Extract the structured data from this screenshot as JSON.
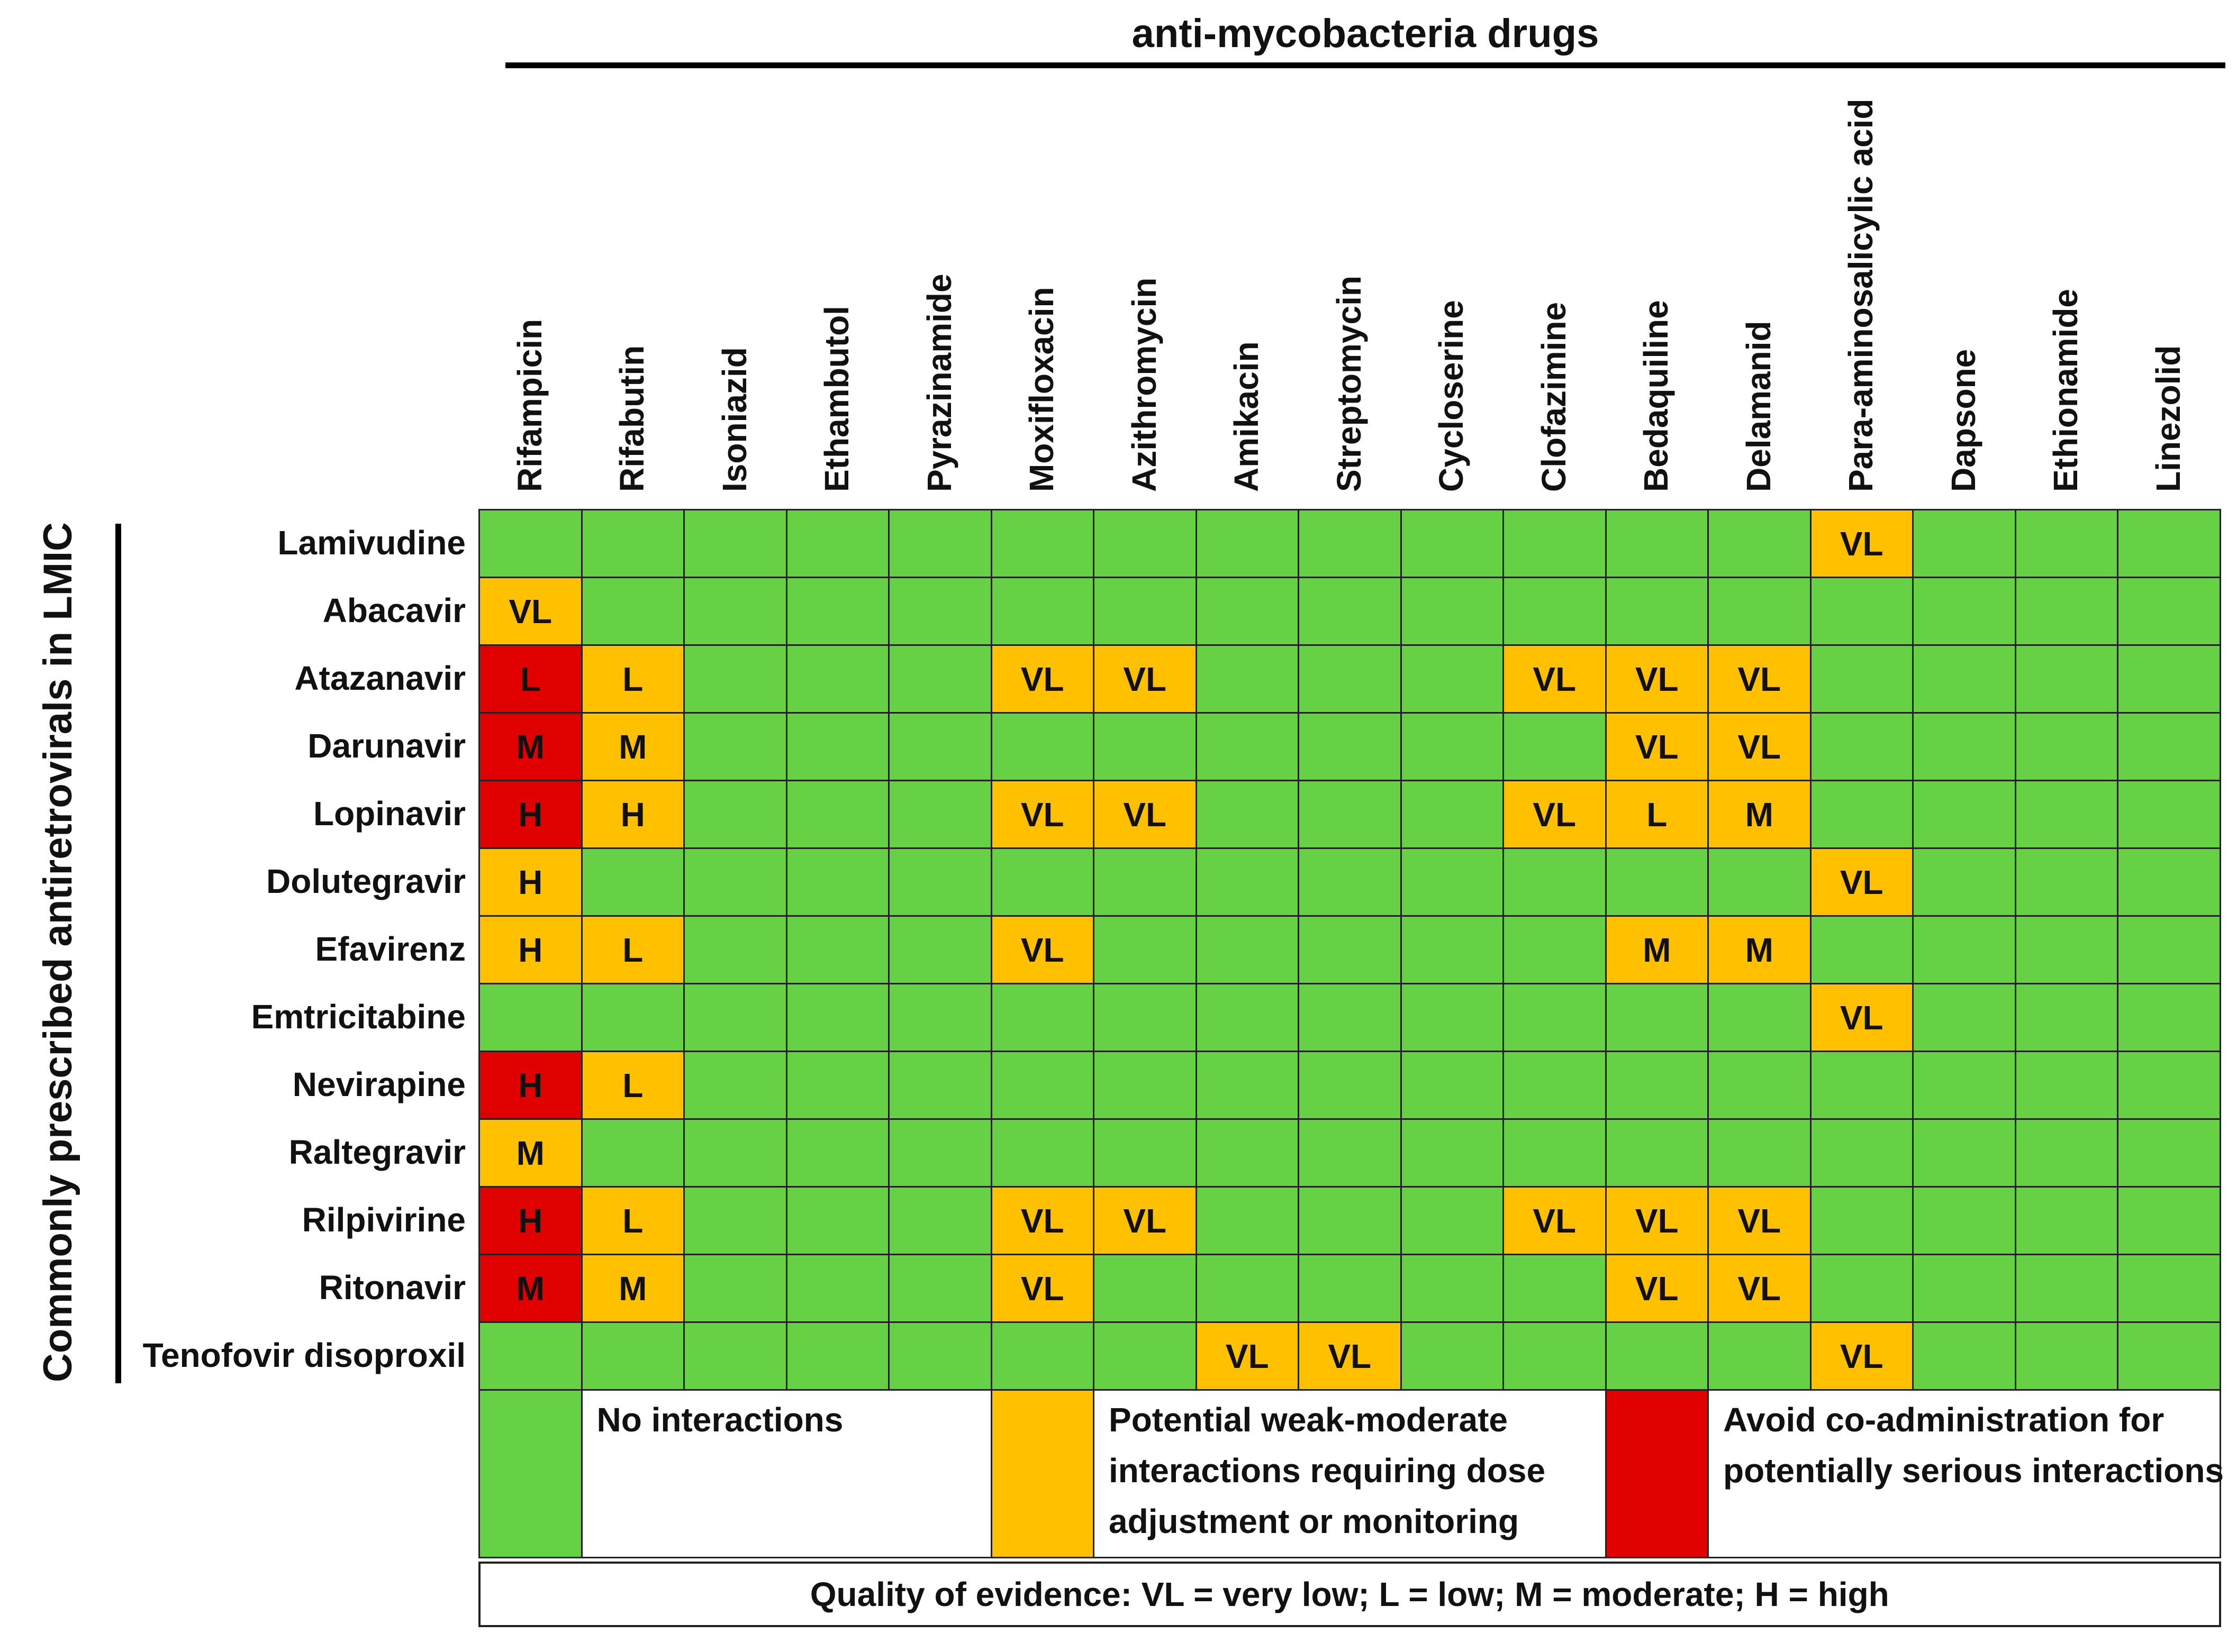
{
  "colors": {
    "none": "#66d144",
    "weak_moderate": "#ffc000",
    "avoid": "#e00000"
  },
  "chart_data": {
    "type": "heatmap",
    "title": "anti-mycobacteria drugs",
    "ylabel": "Commonly prescribed antiretrovirals in LMIC",
    "columns": [
      "Rifampicin",
      "Rifabutin",
      "Isoniazid",
      "Ethambutol",
      "Pyrazinamide",
      "Moxifloxacin",
      "Azithromycin",
      "Amikacin",
      "Streptomycin",
      "Cycloserine",
      "Clofazimine",
      "Bedaquiline",
      "Delamanid",
      "Para-aminosalicylic acid",
      "Dapsone",
      "Ethionamide",
      "Linezolid"
    ],
    "rows": [
      {
        "name": "Lamivudine",
        "cells": [
          {
            "c": "none",
            "t": ""
          },
          {
            "c": "none",
            "t": ""
          },
          {
            "c": "none",
            "t": ""
          },
          {
            "c": "none",
            "t": ""
          },
          {
            "c": "none",
            "t": ""
          },
          {
            "c": "none",
            "t": ""
          },
          {
            "c": "none",
            "t": ""
          },
          {
            "c": "none",
            "t": ""
          },
          {
            "c": "none",
            "t": ""
          },
          {
            "c": "none",
            "t": ""
          },
          {
            "c": "none",
            "t": ""
          },
          {
            "c": "none",
            "t": ""
          },
          {
            "c": "none",
            "t": ""
          },
          {
            "c": "weak_moderate",
            "t": "VL"
          },
          {
            "c": "none",
            "t": ""
          },
          {
            "c": "none",
            "t": ""
          },
          {
            "c": "none",
            "t": ""
          }
        ]
      },
      {
        "name": "Abacavir",
        "cells": [
          {
            "c": "weak_moderate",
            "t": "VL"
          },
          {
            "c": "none",
            "t": ""
          },
          {
            "c": "none",
            "t": ""
          },
          {
            "c": "none",
            "t": ""
          },
          {
            "c": "none",
            "t": ""
          },
          {
            "c": "none",
            "t": ""
          },
          {
            "c": "none",
            "t": ""
          },
          {
            "c": "none",
            "t": ""
          },
          {
            "c": "none",
            "t": ""
          },
          {
            "c": "none",
            "t": ""
          },
          {
            "c": "none",
            "t": ""
          },
          {
            "c": "none",
            "t": ""
          },
          {
            "c": "none",
            "t": ""
          },
          {
            "c": "none",
            "t": ""
          },
          {
            "c": "none",
            "t": ""
          },
          {
            "c": "none",
            "t": ""
          },
          {
            "c": "none",
            "t": ""
          }
        ]
      },
      {
        "name": "Atazanavir",
        "cells": [
          {
            "c": "avoid",
            "t": "L"
          },
          {
            "c": "weak_moderate",
            "t": "L"
          },
          {
            "c": "none",
            "t": ""
          },
          {
            "c": "none",
            "t": ""
          },
          {
            "c": "none",
            "t": ""
          },
          {
            "c": "weak_moderate",
            "t": "VL"
          },
          {
            "c": "weak_moderate",
            "t": "VL"
          },
          {
            "c": "none",
            "t": ""
          },
          {
            "c": "none",
            "t": ""
          },
          {
            "c": "none",
            "t": ""
          },
          {
            "c": "weak_moderate",
            "t": "VL"
          },
          {
            "c": "weak_moderate",
            "t": "VL"
          },
          {
            "c": "weak_moderate",
            "t": "VL"
          },
          {
            "c": "none",
            "t": ""
          },
          {
            "c": "none",
            "t": ""
          },
          {
            "c": "none",
            "t": ""
          },
          {
            "c": "none",
            "t": ""
          }
        ]
      },
      {
        "name": "Darunavir",
        "cells": [
          {
            "c": "avoid",
            "t": "M"
          },
          {
            "c": "weak_moderate",
            "t": "M"
          },
          {
            "c": "none",
            "t": ""
          },
          {
            "c": "none",
            "t": ""
          },
          {
            "c": "none",
            "t": ""
          },
          {
            "c": "none",
            "t": ""
          },
          {
            "c": "none",
            "t": ""
          },
          {
            "c": "none",
            "t": ""
          },
          {
            "c": "none",
            "t": ""
          },
          {
            "c": "none",
            "t": ""
          },
          {
            "c": "none",
            "t": ""
          },
          {
            "c": "weak_moderate",
            "t": "VL"
          },
          {
            "c": "weak_moderate",
            "t": "VL"
          },
          {
            "c": "none",
            "t": ""
          },
          {
            "c": "none",
            "t": ""
          },
          {
            "c": "none",
            "t": ""
          },
          {
            "c": "none",
            "t": ""
          }
        ]
      },
      {
        "name": "Lopinavir",
        "cells": [
          {
            "c": "avoid",
            "t": "H"
          },
          {
            "c": "weak_moderate",
            "t": "H"
          },
          {
            "c": "none",
            "t": ""
          },
          {
            "c": "none",
            "t": ""
          },
          {
            "c": "none",
            "t": ""
          },
          {
            "c": "weak_moderate",
            "t": "VL"
          },
          {
            "c": "weak_moderate",
            "t": "VL"
          },
          {
            "c": "none",
            "t": ""
          },
          {
            "c": "none",
            "t": ""
          },
          {
            "c": "none",
            "t": ""
          },
          {
            "c": "weak_moderate",
            "t": "VL"
          },
          {
            "c": "weak_moderate",
            "t": "L"
          },
          {
            "c": "weak_moderate",
            "t": "M"
          },
          {
            "c": "none",
            "t": ""
          },
          {
            "c": "none",
            "t": ""
          },
          {
            "c": "none",
            "t": ""
          },
          {
            "c": "none",
            "t": ""
          }
        ]
      },
      {
        "name": "Dolutegravir",
        "cells": [
          {
            "c": "weak_moderate",
            "t": "H"
          },
          {
            "c": "none",
            "t": ""
          },
          {
            "c": "none",
            "t": ""
          },
          {
            "c": "none",
            "t": ""
          },
          {
            "c": "none",
            "t": ""
          },
          {
            "c": "none",
            "t": ""
          },
          {
            "c": "none",
            "t": ""
          },
          {
            "c": "none",
            "t": ""
          },
          {
            "c": "none",
            "t": ""
          },
          {
            "c": "none",
            "t": ""
          },
          {
            "c": "none",
            "t": ""
          },
          {
            "c": "none",
            "t": ""
          },
          {
            "c": "none",
            "t": ""
          },
          {
            "c": "weak_moderate",
            "t": "VL"
          },
          {
            "c": "none",
            "t": ""
          },
          {
            "c": "none",
            "t": ""
          },
          {
            "c": "none",
            "t": ""
          }
        ]
      },
      {
        "name": "Efavirenz",
        "cells": [
          {
            "c": "weak_moderate",
            "t": "H"
          },
          {
            "c": "weak_moderate",
            "t": "L"
          },
          {
            "c": "none",
            "t": ""
          },
          {
            "c": "none",
            "t": ""
          },
          {
            "c": "none",
            "t": ""
          },
          {
            "c": "weak_moderate",
            "t": "VL"
          },
          {
            "c": "none",
            "t": ""
          },
          {
            "c": "none",
            "t": ""
          },
          {
            "c": "none",
            "t": ""
          },
          {
            "c": "none",
            "t": ""
          },
          {
            "c": "none",
            "t": ""
          },
          {
            "c": "weak_moderate",
            "t": "M"
          },
          {
            "c": "weak_moderate",
            "t": "M"
          },
          {
            "c": "none",
            "t": ""
          },
          {
            "c": "none",
            "t": ""
          },
          {
            "c": "none",
            "t": ""
          },
          {
            "c": "none",
            "t": ""
          }
        ]
      },
      {
        "name": "Emtricitabine",
        "cells": [
          {
            "c": "none",
            "t": ""
          },
          {
            "c": "none",
            "t": ""
          },
          {
            "c": "none",
            "t": ""
          },
          {
            "c": "none",
            "t": ""
          },
          {
            "c": "none",
            "t": ""
          },
          {
            "c": "none",
            "t": ""
          },
          {
            "c": "none",
            "t": ""
          },
          {
            "c": "none",
            "t": ""
          },
          {
            "c": "none",
            "t": ""
          },
          {
            "c": "none",
            "t": ""
          },
          {
            "c": "none",
            "t": ""
          },
          {
            "c": "none",
            "t": ""
          },
          {
            "c": "none",
            "t": ""
          },
          {
            "c": "weak_moderate",
            "t": "VL"
          },
          {
            "c": "none",
            "t": ""
          },
          {
            "c": "none",
            "t": ""
          },
          {
            "c": "none",
            "t": ""
          }
        ]
      },
      {
        "name": "Nevirapine",
        "cells": [
          {
            "c": "avoid",
            "t": "H"
          },
          {
            "c": "weak_moderate",
            "t": "L"
          },
          {
            "c": "none",
            "t": ""
          },
          {
            "c": "none",
            "t": ""
          },
          {
            "c": "none",
            "t": ""
          },
          {
            "c": "none",
            "t": ""
          },
          {
            "c": "none",
            "t": ""
          },
          {
            "c": "none",
            "t": ""
          },
          {
            "c": "none",
            "t": ""
          },
          {
            "c": "none",
            "t": ""
          },
          {
            "c": "none",
            "t": ""
          },
          {
            "c": "none",
            "t": ""
          },
          {
            "c": "none",
            "t": ""
          },
          {
            "c": "none",
            "t": ""
          },
          {
            "c": "none",
            "t": ""
          },
          {
            "c": "none",
            "t": ""
          },
          {
            "c": "none",
            "t": ""
          }
        ]
      },
      {
        "name": "Raltegravir",
        "cells": [
          {
            "c": "weak_moderate",
            "t": "M"
          },
          {
            "c": "none",
            "t": ""
          },
          {
            "c": "none",
            "t": ""
          },
          {
            "c": "none",
            "t": ""
          },
          {
            "c": "none",
            "t": ""
          },
          {
            "c": "none",
            "t": ""
          },
          {
            "c": "none",
            "t": ""
          },
          {
            "c": "none",
            "t": ""
          },
          {
            "c": "none",
            "t": ""
          },
          {
            "c": "none",
            "t": ""
          },
          {
            "c": "none",
            "t": ""
          },
          {
            "c": "none",
            "t": ""
          },
          {
            "c": "none",
            "t": ""
          },
          {
            "c": "none",
            "t": ""
          },
          {
            "c": "none",
            "t": ""
          },
          {
            "c": "none",
            "t": ""
          },
          {
            "c": "none",
            "t": ""
          }
        ]
      },
      {
        "name": "Rilpivirine",
        "cells": [
          {
            "c": "avoid",
            "t": "H"
          },
          {
            "c": "weak_moderate",
            "t": "L"
          },
          {
            "c": "none",
            "t": ""
          },
          {
            "c": "none",
            "t": ""
          },
          {
            "c": "none",
            "t": ""
          },
          {
            "c": "weak_moderate",
            "t": "VL"
          },
          {
            "c": "weak_moderate",
            "t": "VL"
          },
          {
            "c": "none",
            "t": ""
          },
          {
            "c": "none",
            "t": ""
          },
          {
            "c": "none",
            "t": ""
          },
          {
            "c": "weak_moderate",
            "t": "VL"
          },
          {
            "c": "weak_moderate",
            "t": "VL"
          },
          {
            "c": "weak_moderate",
            "t": "VL"
          },
          {
            "c": "none",
            "t": ""
          },
          {
            "c": "none",
            "t": ""
          },
          {
            "c": "none",
            "t": ""
          },
          {
            "c": "none",
            "t": ""
          }
        ]
      },
      {
        "name": "Ritonavir",
        "cells": [
          {
            "c": "avoid",
            "t": "M"
          },
          {
            "c": "weak_moderate",
            "t": "M"
          },
          {
            "c": "none",
            "t": ""
          },
          {
            "c": "none",
            "t": ""
          },
          {
            "c": "none",
            "t": ""
          },
          {
            "c": "weak_moderate",
            "t": "VL"
          },
          {
            "c": "none",
            "t": ""
          },
          {
            "c": "none",
            "t": ""
          },
          {
            "c": "none",
            "t": ""
          },
          {
            "c": "none",
            "t": ""
          },
          {
            "c": "none",
            "t": ""
          },
          {
            "c": "weak_moderate",
            "t": "VL"
          },
          {
            "c": "weak_moderate",
            "t": "VL"
          },
          {
            "c": "none",
            "t": ""
          },
          {
            "c": "none",
            "t": ""
          },
          {
            "c": "none",
            "t": ""
          },
          {
            "c": "none",
            "t": ""
          }
        ]
      },
      {
        "name": "Tenofovir disoproxil",
        "cells": [
          {
            "c": "none",
            "t": ""
          },
          {
            "c": "none",
            "t": ""
          },
          {
            "c": "none",
            "t": ""
          },
          {
            "c": "none",
            "t": ""
          },
          {
            "c": "none",
            "t": ""
          },
          {
            "c": "none",
            "t": ""
          },
          {
            "c": "none",
            "t": ""
          },
          {
            "c": "weak_moderate",
            "t": "VL"
          },
          {
            "c": "weak_moderate",
            "t": "VL"
          },
          {
            "c": "none",
            "t": ""
          },
          {
            "c": "none",
            "t": ""
          },
          {
            "c": "none",
            "t": ""
          },
          {
            "c": "none",
            "t": ""
          },
          {
            "c": "weak_moderate",
            "t": "VL"
          },
          {
            "c": "none",
            "t": ""
          },
          {
            "c": "none",
            "t": ""
          },
          {
            "c": "none",
            "t": ""
          }
        ]
      }
    ],
    "legend": [
      {
        "key": "none",
        "text": "No interactions"
      },
      {
        "key": "weak_moderate",
        "text": "Potential weak-moderate interactions requiring dose adjustment or monitoring"
      },
      {
        "key": "avoid",
        "text": "Avoid co-administration for potentially serious interactions"
      }
    ],
    "footer": "Quality of evidence: VL = very low; L = low; M = moderate; H = high"
  }
}
